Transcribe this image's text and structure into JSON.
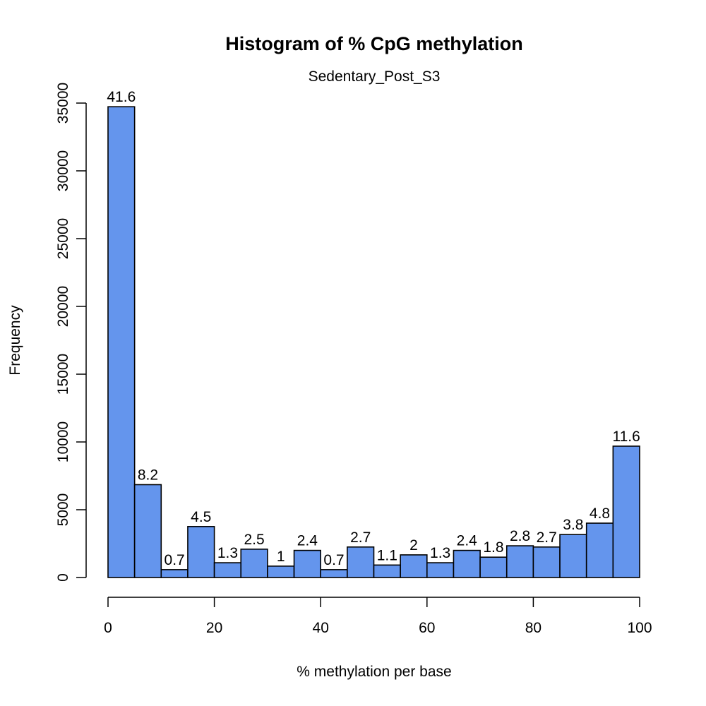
{
  "chart_data": {
    "type": "bar",
    "title": "Histogram of % CpG methylation",
    "subtitle": "Sedentary_Post_S3",
    "xlabel": "% methylation per base",
    "ylabel": "Frequency",
    "xlim": [
      0,
      100
    ],
    "ylim": [
      0,
      35000
    ],
    "bin_width": 5,
    "bin_edges": [
      0,
      5,
      10,
      15,
      20,
      25,
      30,
      35,
      40,
      45,
      50,
      55,
      60,
      65,
      70,
      75,
      80,
      85,
      90,
      95,
      100
    ],
    "values": [
      34730,
      6850,
      580,
      3760,
      1090,
      2090,
      840,
      2000,
      580,
      2250,
      920,
      1670,
      1090,
      2000,
      1500,
      2340,
      2250,
      3170,
      4010,
      9690
    ],
    "labels": [
      "41.6",
      "8.2",
      "0.7",
      "4.5",
      "1.3",
      "2.5",
      "1",
      "2.4",
      "0.7",
      "2.7",
      "1.1",
      "2",
      "1.3",
      "2.4",
      "1.8",
      "2.8",
      "2.7",
      "3.8",
      "4.8",
      "11.6"
    ],
    "xticks": [
      0,
      20,
      40,
      60,
      80,
      100
    ],
    "xtick_labels": [
      "0",
      "20",
      "40",
      "60",
      "80",
      "100"
    ],
    "yticks": [
      0,
      5000,
      10000,
      15000,
      20000,
      25000,
      30000,
      35000
    ],
    "ytick_labels": [
      "0",
      "5000",
      "10000",
      "15000",
      "20000",
      "25000",
      "30000",
      "35000"
    ],
    "grid": false,
    "bar_color": "#6495ED",
    "bar_edge_color": "#000000"
  }
}
